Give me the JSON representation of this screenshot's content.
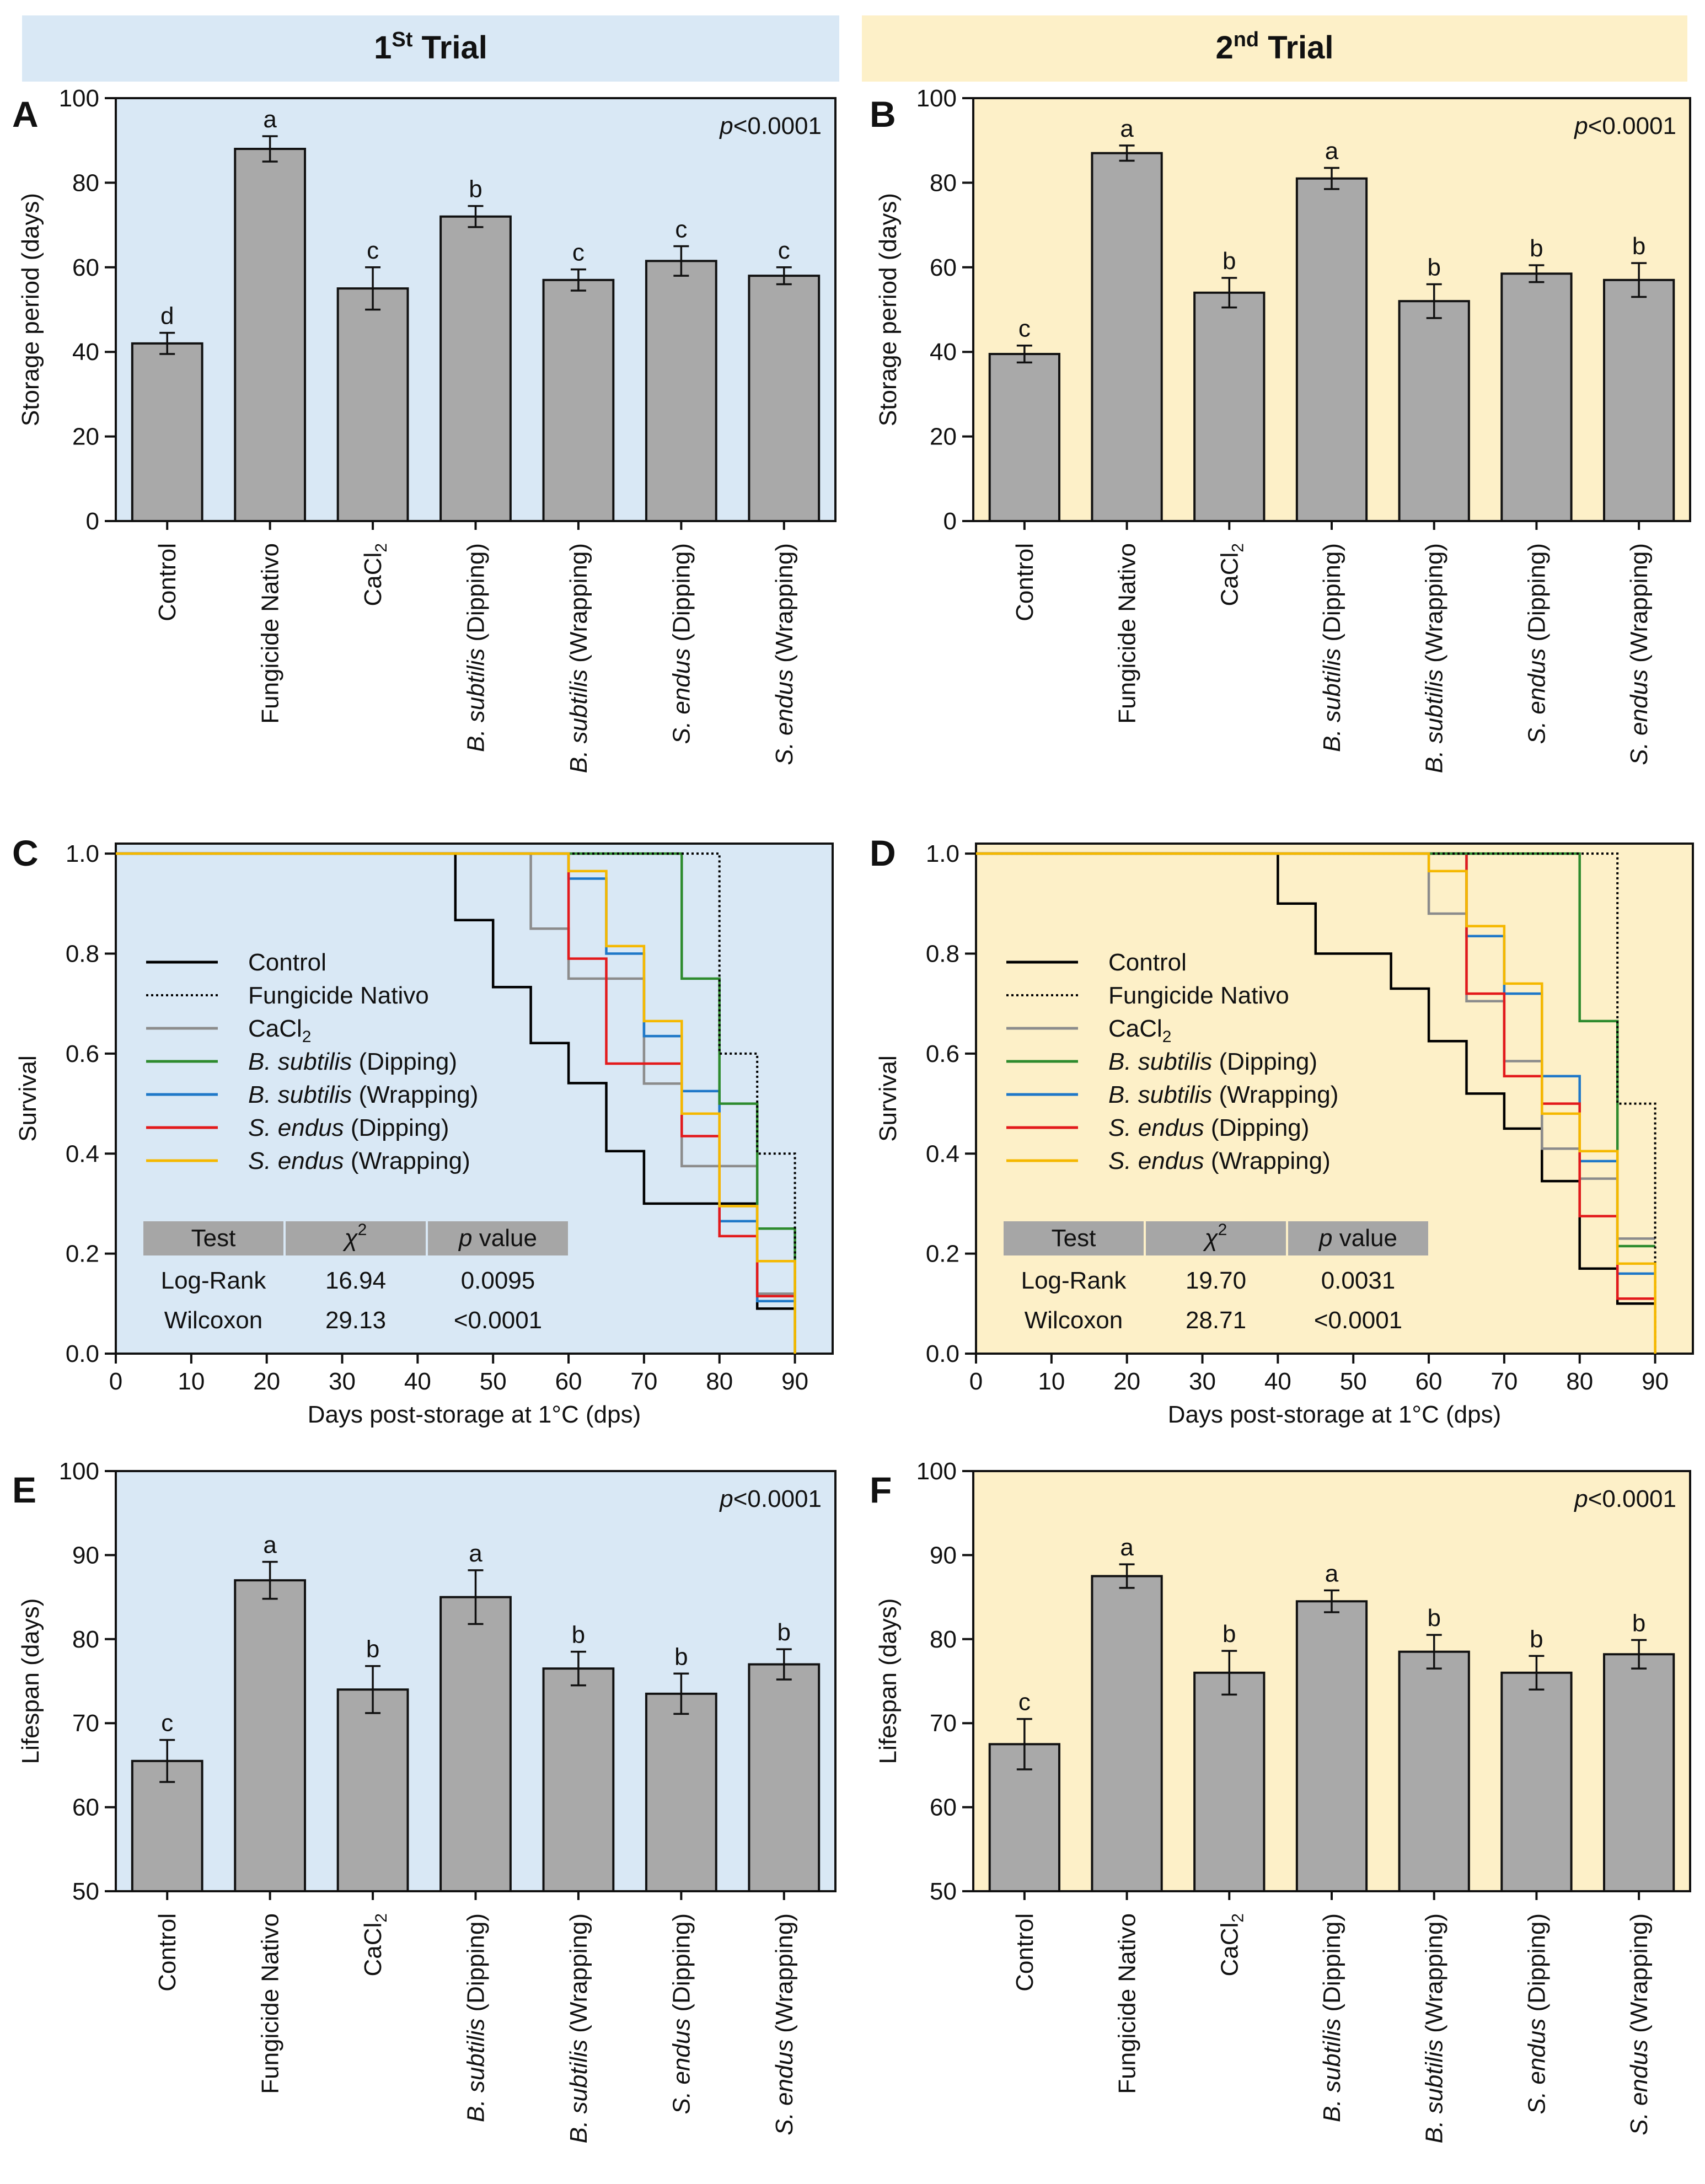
{
  "colors": {
    "trial1_bg": "#d9e8f5",
    "trial2_bg": "#fdf0c8",
    "bar_fill": "#a9a9a9",
    "table_header": "#a6a6a6",
    "series": {
      "Control": "#000000",
      "Fungicide Nativo": "#000000",
      "CaCl2": "#8c8c8c",
      "B. subtilis (Dipping)": "#2e8b2e",
      "B. subtilis (Wrapping)": "#1f78c8",
      "S. endus (Dipping)": "#e31a1c",
      "S. endus (Wrapping)": "#f5b800"
    }
  },
  "headers": {
    "trial1": {
      "base": "1",
      "sup": "St",
      "rest": " Trial"
    },
    "trial2": {
      "base": "2",
      "sup": "nd",
      "rest": " Trial"
    }
  },
  "categories": [
    {
      "label": "Control",
      "parts": [
        {
          "t": "Control"
        }
      ]
    },
    {
      "label": "Fungicide Nativo",
      "parts": [
        {
          "t": "Fungicide Nativo"
        }
      ]
    },
    {
      "label": "CaCl2",
      "parts": [
        {
          "t": "CaCl"
        },
        {
          "t": "2",
          "sub": true
        }
      ]
    },
    {
      "label": "B. subtilis (Dipping)",
      "parts": [
        {
          "t": "B. subtilis",
          "it": true
        },
        {
          "t": " (Dipping)"
        }
      ]
    },
    {
      "label": "B. subtilis (Wrapping)",
      "parts": [
        {
          "t": "B. subtilis",
          "it": true
        },
        {
          "t": " (Wrapping)"
        }
      ]
    },
    {
      "label": "S. endus (Dipping)",
      "parts": [
        {
          "t": "S. endus",
          "it": true
        },
        {
          "t": " (Dipping)"
        }
      ]
    },
    {
      "label": "S. endus (Wrapping)",
      "parts": [
        {
          "t": "S. endus",
          "it": true
        },
        {
          "t": " (Wrapping)"
        }
      ]
    }
  ],
  "chart_data": [
    {
      "panel": "A",
      "trial": "trial1",
      "type": "bar",
      "ylabel": "Storage period (days)",
      "ylim": [
        0,
        100
      ],
      "yticks": [
        0,
        20,
        40,
        60,
        80,
        100
      ],
      "values": [
        42,
        88,
        55,
        72,
        57,
        61.5,
        58
      ],
      "errors": [
        2.5,
        3,
        5,
        2.5,
        2.5,
        3.5,
        2
      ],
      "letters": [
        "d",
        "a",
        "c",
        "b",
        "c",
        "c",
        "c"
      ],
      "pvalue": {
        "p": "p",
        "rest": "<0.0001"
      }
    },
    {
      "panel": "B",
      "trial": "trial2",
      "type": "bar",
      "ylabel": "Storage period (days)",
      "ylim": [
        0,
        100
      ],
      "yticks": [
        0,
        20,
        40,
        60,
        80,
        100
      ],
      "values": [
        39.5,
        87,
        54,
        81,
        52,
        58.5,
        57
      ],
      "errors": [
        2,
        1.8,
        3.5,
        2.5,
        4,
        2,
        4
      ],
      "letters": [
        "c",
        "a",
        "b",
        "a",
        "b",
        "b",
        "b"
      ],
      "pvalue": {
        "p": "p",
        "rest": "<0.0001"
      }
    },
    {
      "panel": "C",
      "trial": "trial1",
      "type": "line",
      "ylabel": "Survival",
      "xlabel": "Days post-storage at 1°C (dps)",
      "xlim": [
        0,
        95
      ],
      "xticks": [
        0,
        10,
        20,
        30,
        40,
        50,
        60,
        70,
        80,
        90
      ],
      "ylim": [
        0,
        1.02
      ],
      "yticks": [
        "0.0",
        "0.2",
        "0.4",
        "0.6",
        "0.8",
        "1.0"
      ],
      "series": [
        {
          "name": "Control",
          "style": "solid",
          "steps": [
            [
              0,
              1
            ],
            [
              45,
              1
            ],
            [
              45,
              0.867
            ],
            [
              50,
              0.867
            ],
            [
              50,
              0.733
            ],
            [
              55,
              0.733
            ],
            [
              55,
              0.621
            ],
            [
              60,
              0.621
            ],
            [
              60,
              0.541
            ],
            [
              65,
              0.541
            ],
            [
              65,
              0.405
            ],
            [
              70,
              0.405
            ],
            [
              70,
              0.3
            ],
            [
              85,
              0.3
            ],
            [
              85,
              0.09
            ],
            [
              90,
              0.09
            ]
          ]
        },
        {
          "name": "Fungicide Nativo",
          "style": "dotted",
          "steps": [
            [
              0,
              1
            ],
            [
              80,
              1
            ],
            [
              80,
              0.6
            ],
            [
              85,
              0.6
            ],
            [
              85,
              0.4
            ],
            [
              90,
              0.4
            ],
            [
              90,
              0
            ]
          ]
        },
        {
          "name": "CaCl2",
          "style": "solid",
          "steps": [
            [
              0,
              1
            ],
            [
              55,
              1
            ],
            [
              55,
              0.85
            ],
            [
              60,
              0.85
            ],
            [
              60,
              0.75
            ],
            [
              70,
              0.75
            ],
            [
              70,
              0.54
            ],
            [
              75,
              0.54
            ],
            [
              75,
              0.375
            ],
            [
              85,
              0.375
            ],
            [
              85,
              0.12
            ],
            [
              90,
              0.12
            ]
          ]
        },
        {
          "name": "B. subtilis (Dipping)",
          "style": "solid",
          "steps": [
            [
              0,
              1
            ],
            [
              75,
              1
            ],
            [
              75,
              0.75
            ],
            [
              80,
              0.75
            ],
            [
              80,
              0.5
            ],
            [
              85,
              0.5
            ],
            [
              85,
              0.25
            ],
            [
              90,
              0.25
            ],
            [
              90,
              0
            ]
          ]
        },
        {
          "name": "B. subtilis (Wrapping)",
          "style": "solid",
          "steps": [
            [
              0,
              1
            ],
            [
              60,
              1
            ],
            [
              60,
              0.95
            ],
            [
              65,
              0.95
            ],
            [
              65,
              0.8
            ],
            [
              70,
              0.8
            ],
            [
              70,
              0.635
            ],
            [
              75,
              0.635
            ],
            [
              75,
              0.525
            ],
            [
              80,
              0.525
            ],
            [
              80,
              0.265
            ],
            [
              85,
              0.265
            ],
            [
              85,
              0.105
            ],
            [
              90,
              0.105
            ]
          ]
        },
        {
          "name": "S. endus (Dipping)",
          "style": "solid",
          "steps": [
            [
              0,
              1
            ],
            [
              60,
              1
            ],
            [
              60,
              0.79
            ],
            [
              65,
              0.79
            ],
            [
              65,
              0.58
            ],
            [
              75,
              0.58
            ],
            [
              75,
              0.435
            ],
            [
              80,
              0.435
            ],
            [
              80,
              0.235
            ],
            [
              85,
              0.235
            ],
            [
              85,
              0.115
            ],
            [
              90,
              0.115
            ]
          ]
        },
        {
          "name": "S. endus (Wrapping)",
          "style": "solid",
          "steps": [
            [
              0,
              1
            ],
            [
              60,
              1
            ],
            [
              60,
              0.965
            ],
            [
              65,
              0.965
            ],
            [
              65,
              0.815
            ],
            [
              70,
              0.815
            ],
            [
              70,
              0.665
            ],
            [
              75,
              0.665
            ],
            [
              75,
              0.48
            ],
            [
              80,
              0.48
            ],
            [
              80,
              0.295
            ],
            [
              85,
              0.295
            ],
            [
              85,
              0.185
            ],
            [
              90,
              0.185
            ],
            [
              90,
              0
            ]
          ]
        }
      ],
      "stats": {
        "headers": [
          {
            "t": "Test"
          },
          {
            "t": "χ",
            "it": true,
            "sup": "2"
          },
          {
            "t": "p",
            "it": true,
            "rest": " value"
          }
        ],
        "rows": [
          [
            "Log-Rank",
            "16.94",
            "0.0095"
          ],
          [
            "Wilcoxon",
            "29.13",
            "<0.0001"
          ]
        ]
      }
    },
    {
      "panel": "D",
      "trial": "trial2",
      "type": "line",
      "ylabel": "Survival",
      "xlabel": "Days post-storage at 1°C (dps)",
      "xlim": [
        0,
        95
      ],
      "xticks": [
        0,
        10,
        20,
        30,
        40,
        50,
        60,
        70,
        80,
        90
      ],
      "ylim": [
        0,
        1.02
      ],
      "yticks": [
        "0.0",
        "0.2",
        "0.4",
        "0.6",
        "0.8",
        "1.0"
      ],
      "series": [
        {
          "name": "Control",
          "style": "solid",
          "steps": [
            [
              0,
              1
            ],
            [
              40,
              1
            ],
            [
              40,
              0.9
            ],
            [
              45,
              0.9
            ],
            [
              45,
              0.8
            ],
            [
              55,
              0.8
            ],
            [
              55,
              0.73
            ],
            [
              60,
              0.73
            ],
            [
              60,
              0.625
            ],
            [
              65,
              0.625
            ],
            [
              65,
              0.52
            ],
            [
              70,
              0.52
            ],
            [
              70,
              0.45
            ],
            [
              75,
              0.45
            ],
            [
              75,
              0.345
            ],
            [
              80,
              0.345
            ],
            [
              80,
              0.17
            ],
            [
              85,
              0.17
            ],
            [
              85,
              0.1
            ],
            [
              90,
              0.1
            ]
          ]
        },
        {
          "name": "Fungicide Nativo",
          "style": "dotted",
          "steps": [
            [
              0,
              1
            ],
            [
              85,
              1
            ],
            [
              85,
              0.5
            ],
            [
              90,
              0.5
            ],
            [
              90,
              0
            ]
          ]
        },
        {
          "name": "CaCl2",
          "style": "solid",
          "steps": [
            [
              0,
              1
            ],
            [
              60,
              1
            ],
            [
              60,
              0.88
            ],
            [
              65,
              0.88
            ],
            [
              65,
              0.705
            ],
            [
              70,
              0.705
            ],
            [
              70,
              0.585
            ],
            [
              75,
              0.585
            ],
            [
              75,
              0.41
            ],
            [
              80,
              0.41
            ],
            [
              80,
              0.35
            ],
            [
              85,
              0.35
            ],
            [
              85,
              0.23
            ],
            [
              90,
              0.23
            ]
          ]
        },
        {
          "name": "B. subtilis (Dipping)",
          "style": "solid",
          "steps": [
            [
              0,
              1
            ],
            [
              80,
              1
            ],
            [
              80,
              0.665
            ],
            [
              85,
              0.665
            ],
            [
              85,
              0.215
            ],
            [
              90,
              0.215
            ]
          ]
        },
        {
          "name": "B. subtilis (Wrapping)",
          "style": "solid",
          "steps": [
            [
              0,
              1
            ],
            [
              65,
              1
            ],
            [
              65,
              0.835
            ],
            [
              70,
              0.835
            ],
            [
              70,
              0.72
            ],
            [
              75,
              0.72
            ],
            [
              75,
              0.555
            ],
            [
              80,
              0.555
            ],
            [
              80,
              0.385
            ],
            [
              85,
              0.385
            ],
            [
              85,
              0.16
            ],
            [
              90,
              0.16
            ]
          ]
        },
        {
          "name": "S. endus (Dipping)",
          "style": "solid",
          "steps": [
            [
              0,
              1
            ],
            [
              65,
              1
            ],
            [
              65,
              0.72
            ],
            [
              70,
              0.72
            ],
            [
              70,
              0.555
            ],
            [
              75,
              0.555
            ],
            [
              75,
              0.5
            ],
            [
              80,
              0.5
            ],
            [
              80,
              0.275
            ],
            [
              85,
              0.275
            ],
            [
              85,
              0.11
            ],
            [
              90,
              0.11
            ]
          ]
        },
        {
          "name": "S. endus (Wrapping)",
          "style": "solid",
          "steps": [
            [
              0,
              1
            ],
            [
              60,
              1
            ],
            [
              60,
              0.965
            ],
            [
              65,
              0.965
            ],
            [
              65,
              0.855
            ],
            [
              70,
              0.855
            ],
            [
              70,
              0.74
            ],
            [
              75,
              0.74
            ],
            [
              75,
              0.48
            ],
            [
              80,
              0.48
            ],
            [
              80,
              0.405
            ],
            [
              85,
              0.405
            ],
            [
              85,
              0.18
            ],
            [
              90,
              0.18
            ],
            [
              90,
              0
            ]
          ]
        }
      ],
      "stats": {
        "headers": [
          {
            "t": "Test"
          },
          {
            "t": "χ",
            "it": true,
            "sup": "2"
          },
          {
            "t": "p",
            "it": true,
            "rest": " value"
          }
        ],
        "rows": [
          [
            "Log-Rank",
            "19.70",
            "0.0031"
          ],
          [
            "Wilcoxon",
            "28.71",
            "<0.0001"
          ]
        ]
      }
    },
    {
      "panel": "E",
      "trial": "trial1",
      "type": "bar",
      "ylabel": "Lifespan (days)",
      "ylim": [
        50,
        100
      ],
      "yticks": [
        50,
        60,
        70,
        80,
        90,
        100
      ],
      "values": [
        65.5,
        87,
        74,
        85,
        76.5,
        73.5,
        77
      ],
      "errors": [
        2.5,
        2.2,
        2.8,
        3.2,
        2,
        2.4,
        1.8
      ],
      "letters": [
        "c",
        "a",
        "b",
        "a",
        "b",
        "b",
        "b"
      ],
      "pvalue": {
        "p": "p",
        "rest": "<0.0001"
      }
    },
    {
      "panel": "F",
      "trial": "trial2",
      "type": "bar",
      "ylabel": "Lifespan (days)",
      "ylim": [
        50,
        100
      ],
      "yticks": [
        50,
        60,
        70,
        80,
        90,
        100
      ],
      "values": [
        67.5,
        87.5,
        76,
        84.5,
        78.5,
        76,
        78.2
      ],
      "errors": [
        3,
        1.4,
        2.6,
        1.3,
        2,
        2,
        1.7
      ],
      "letters": [
        "c",
        "a",
        "b",
        "a",
        "b",
        "b",
        "b"
      ],
      "pvalue": {
        "p": "p",
        "rest": "<0.0001"
      }
    }
  ]
}
